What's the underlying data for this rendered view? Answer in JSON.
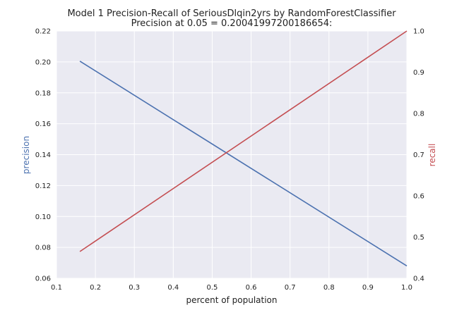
{
  "chart_data": {
    "type": "line",
    "title": "Model 1 Precision-Recall of SeriousDlqin2yrs by RandomForestClassifier",
    "subtitle": "Precision at 0.05 = 0.20041997200186654:",
    "xlabel": "percent of population",
    "ylabel_left": "precision",
    "ylabel_right": "recall",
    "xlim": [
      0.1,
      1.0
    ],
    "ylim_left": [
      0.06,
      0.22
    ],
    "ylim_right": [
      0.4,
      1.0
    ],
    "xticks": [
      "0.1",
      "0.2",
      "0.3",
      "0.4",
      "0.5",
      "0.6",
      "0.7",
      "0.8",
      "0.9",
      "1.0"
    ],
    "yticks_left": [
      "0.06",
      "0.08",
      "0.10",
      "0.12",
      "0.14",
      "0.16",
      "0.18",
      "0.20",
      "0.22"
    ],
    "yticks_right": [
      "0.4",
      "0.5",
      "0.6",
      "0.7",
      "0.8",
      "0.9",
      "1.0"
    ],
    "grid": true,
    "background": "#eaeaf2",
    "series": [
      {
        "axis": "left",
        "color": "#4c72b0",
        "x": [
          0.16,
          1.0
        ],
        "values": [
          0.2005,
          0.068
        ]
      },
      {
        "axis": "right",
        "color": "#c44e52",
        "x": [
          0.16,
          1.0
        ],
        "values": [
          0.465,
          1.0
        ]
      }
    ]
  }
}
